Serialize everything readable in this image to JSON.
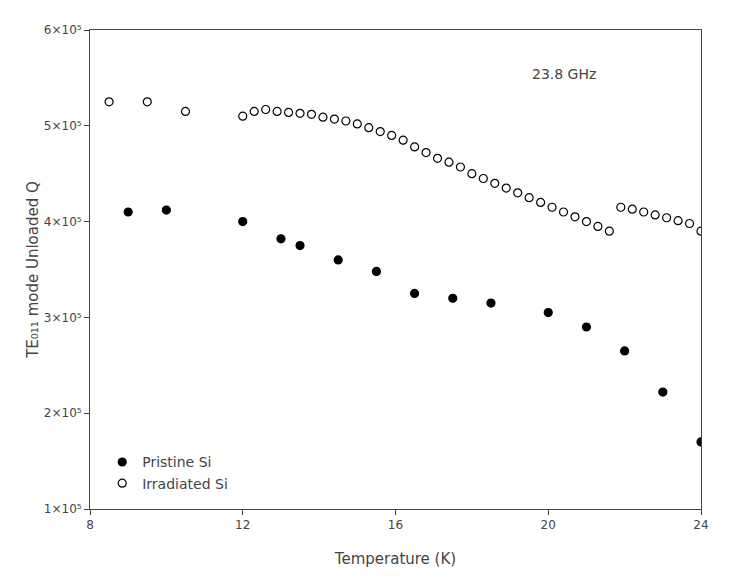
{
  "chart_data": {
    "type": "scatter",
    "x_label": "Temperature (K)",
    "y_label": "TE₀₁₁ mode Unloaded Q",
    "annotations": [
      "23.8 GHz"
    ],
    "series": [
      {
        "name": "Pristine Si",
        "color": "black",
        "marker": "circle",
        "x": [
          9.0,
          10.0,
          12.0,
          13.0,
          13.5,
          14.5,
          15.5,
          16.5,
          17.5,
          18.5,
          20.0,
          21.0,
          22.0,
          23.0,
          24.0
        ],
        "values": [
          410000,
          412000,
          400000,
          382000,
          375000,
          360000,
          348000,
          325000,
          320000,
          315000,
          305000,
          290000,
          265000,
          222000,
          170000
        ]
      },
      {
        "name": "Irradiated Si",
        "color": "black",
        "marker": "circle-open",
        "x": [
          8.5,
          9.5,
          10.5,
          12.0,
          12.3,
          12.6,
          12.9,
          13.2,
          13.5,
          13.8,
          14.1,
          14.4,
          14.7,
          15.0,
          15.3,
          15.6,
          15.9,
          16.2,
          16.5,
          16.8,
          17.1,
          17.4,
          17.7,
          18.0,
          18.3,
          18.6,
          18.9,
          19.2,
          19.5,
          19.8,
          20.1,
          20.4,
          20.7,
          21.0,
          21.3,
          21.6,
          21.9,
          22.2,
          22.5,
          22.8,
          23.1,
          23.4,
          23.7,
          24.0
        ],
        "values": [
          525000,
          525000,
          515000,
          510000,
          515000,
          517000,
          515000,
          514000,
          513000,
          512000,
          509000,
          507000,
          505000,
          502000,
          498000,
          494000,
          490000,
          485000,
          478000,
          472000,
          466000,
          462000,
          457000,
          450000,
          445000,
          440000,
          435000,
          430000,
          425000,
          420000,
          415000,
          410000,
          405000,
          400000,
          395000,
          390000,
          415000,
          413000,
          410000,
          407000,
          404000,
          401000,
          398000,
          390000
        ]
      }
    ],
    "xlim": [
      8,
      24
    ],
    "ylim": [
      100000,
      600000
    ],
    "xticks": [
      8,
      12,
      16,
      20,
      24
    ],
    "yticks": [
      {
        "value": 100000,
        "label": "1×10⁵"
      },
      {
        "value": 200000,
        "label": "2×10⁵"
      },
      {
        "value": 300000,
        "label": "3×10⁵"
      },
      {
        "value": 400000,
        "label": "4×10⁵"
      },
      {
        "value": 500000,
        "label": "5×10⁵"
      },
      {
        "value": 600000,
        "label": "6×10⁵"
      }
    ],
    "grid": false,
    "legend": "lower left"
  }
}
